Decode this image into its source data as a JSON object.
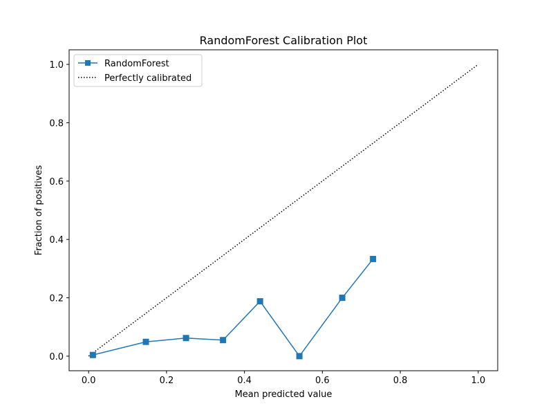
{
  "chart_data": {
    "type": "line",
    "title": "RandomForest Calibration Plot",
    "xlabel": "Mean predicted value",
    "ylabel": "Fraction of positives",
    "xlim": [
      -0.05,
      1.05
    ],
    "ylim": [
      -0.05,
      1.05
    ],
    "xticks": [
      0.0,
      0.2,
      0.4,
      0.6,
      0.8,
      1.0
    ],
    "yticks": [
      0.0,
      0.2,
      0.4,
      0.6,
      0.8,
      1.0
    ],
    "xtick_labels": [
      "0.0",
      "0.2",
      "0.4",
      "0.6",
      "0.8",
      "1.0"
    ],
    "ytick_labels": [
      "0.0",
      "0.2",
      "0.4",
      "0.6",
      "0.8",
      "1.0"
    ],
    "grid": false,
    "legend_position": "top-left",
    "series": [
      {
        "name": "RandomForest",
        "marker": "square",
        "color": "#1f77b4",
        "x": [
          0.011,
          0.147,
          0.25,
          0.345,
          0.44,
          0.541,
          0.651,
          0.73
        ],
        "y": [
          0.004,
          0.049,
          0.062,
          0.055,
          0.188,
          0.0,
          0.2,
          0.333
        ]
      },
      {
        "name": "Perfectly calibrated",
        "style": "dotted",
        "color": "#000000",
        "x": [
          0.0,
          1.0
        ],
        "y": [
          0.0,
          1.0
        ]
      }
    ]
  }
}
